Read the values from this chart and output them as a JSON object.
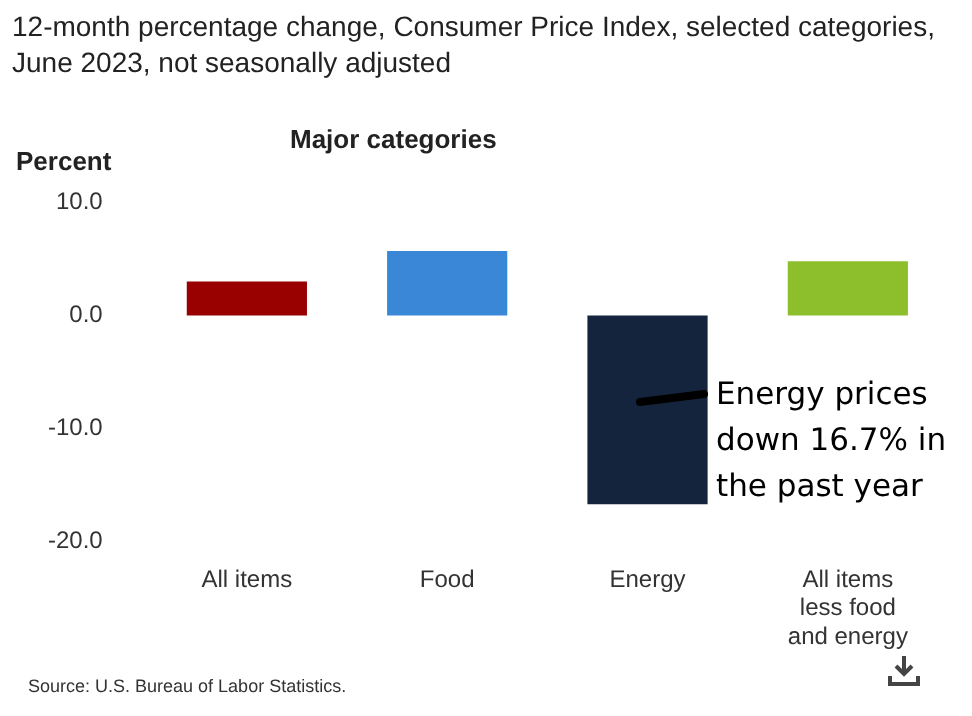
{
  "chart_data": {
    "type": "bar",
    "title": "12-month percentage change, Consumer Price Index, selected categories, June 2023, not seasonally adjusted",
    "subtitle": "Major categories",
    "ylabel": "Percent",
    "categories": [
      "All items",
      "Food",
      "Energy",
      "All items less food and energy"
    ],
    "values": [
      3.0,
      5.7,
      -16.7,
      4.8
    ],
    "colors": [
      "#990000",
      "#3a87d8",
      "#14243c",
      "#8cbf2b"
    ],
    "ylim": [
      -20,
      10
    ],
    "yticks": [
      {
        "value": 10,
        "label": "10.0"
      },
      {
        "value": 0,
        "label": "0.0"
      },
      {
        "value": -10,
        "label": "-10.0"
      },
      {
        "value": -20,
        "label": "-20.0"
      }
    ],
    "annotations": [
      "Energy prices down 16.7% in the past year",
      "Source: U.S. Bureau of Labor Statistics."
    ]
  }
}
